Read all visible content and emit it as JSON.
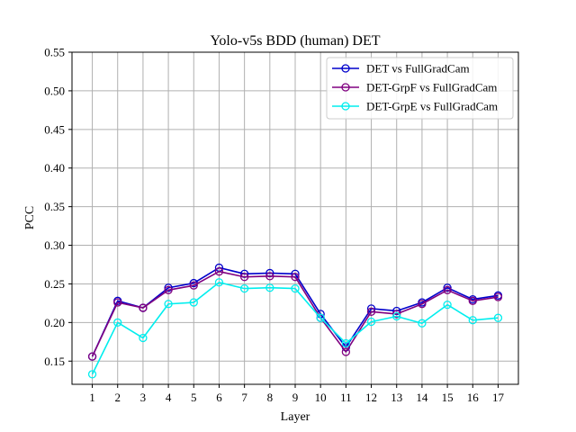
{
  "chart_data": {
    "type": "line",
    "title": "Yolo-v5s BDD (human) DET",
    "xlabel": "Layer",
    "ylabel": "PCC",
    "x": [
      1,
      2,
      3,
      4,
      5,
      6,
      7,
      8,
      9,
      10,
      11,
      12,
      13,
      14,
      15,
      16,
      17
    ],
    "xlim": [
      0.2,
      17.8
    ],
    "ylim": [
      0.12,
      0.55
    ],
    "yticks": [
      0.15,
      0.2,
      0.25,
      0.3,
      0.35,
      0.4,
      0.45,
      0.5,
      0.55
    ],
    "ytick_labels": [
      "0.15",
      "0.20",
      "0.25",
      "0.30",
      "0.35",
      "0.40",
      "0.45",
      "0.50",
      "0.55"
    ],
    "xtick_labels": [
      "1",
      "2",
      "3",
      "4",
      "5",
      "6",
      "7",
      "8",
      "9",
      "10",
      "11",
      "12",
      "13",
      "14",
      "15",
      "16",
      "17"
    ],
    "grid": true,
    "legend_position": "top-right",
    "marker": "open-circle",
    "series": [
      {
        "name": "DET vs FullGradCam",
        "color": "#0000cc",
        "values": [
          0.156,
          0.228,
          0.219,
          0.245,
          0.251,
          0.271,
          0.263,
          0.264,
          0.263,
          0.211,
          0.168,
          0.218,
          0.215,
          0.226,
          0.245,
          0.23,
          0.235
        ]
      },
      {
        "name": "DET-GrpF vs FullGradCam",
        "color": "#800080",
        "values": [
          0.156,
          0.226,
          0.219,
          0.242,
          0.248,
          0.266,
          0.259,
          0.26,
          0.259,
          0.206,
          0.162,
          0.214,
          0.211,
          0.224,
          0.242,
          0.228,
          0.233
        ]
      },
      {
        "name": "DET-GrpE vs FullGradCam",
        "color": "#00eeee",
        "values": [
          0.133,
          0.2,
          0.18,
          0.224,
          0.226,
          0.252,
          0.244,
          0.245,
          0.244,
          0.206,
          0.173,
          0.201,
          0.208,
          0.199,
          0.223,
          0.203,
          0.206
        ]
      }
    ]
  }
}
